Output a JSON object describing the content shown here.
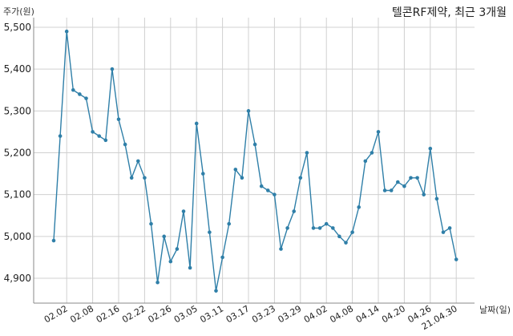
{
  "chart_data": {
    "type": "line",
    "title": "텔콘RF제약, 최근 3개월",
    "ylabel": "주가(원)",
    "xlabel": "날짜(일)",
    "ylim": [
      4850,
      5520
    ],
    "yticks": [
      4900,
      5000,
      5100,
      5200,
      5300,
      5400,
      5500
    ],
    "ytick_labels": [
      "4,900",
      "5,000",
      "5,100",
      "5,200",
      "5,300",
      "5,400",
      "5,500"
    ],
    "xtick_labels": [
      "02.02",
      "02.08",
      "02.16",
      "02.22",
      "02.26",
      "03.05",
      "03.11",
      "03.17",
      "03.23",
      "03.29",
      "04.02",
      "04.08",
      "04.14",
      "04.20",
      "04.26",
      "21.04.30"
    ],
    "xtick_index": [
      2,
      6,
      10,
      14,
      18,
      22,
      26,
      30,
      34,
      38,
      42,
      46,
      50,
      54,
      58,
      62
    ],
    "grid": true,
    "line_color": "#2f7fa8",
    "series": [
      {
        "values": [
          4990,
          5240,
          5490,
          5350,
          5340,
          5330,
          5250,
          5240,
          5230,
          5400,
          5280,
          5220,
          5140,
          5180,
          5140,
          5030,
          4890,
          5000,
          4940,
          4970,
          5060,
          4925,
          5270,
          5150,
          5010,
          4870,
          4950,
          5030,
          5160,
          5140,
          5300,
          5220,
          5120,
          5110,
          5100,
          4970,
          5020,
          5060,
          5140,
          5200,
          5020,
          5020,
          5030,
          5020,
          5000,
          4985,
          5010,
          5070,
          5180,
          5200,
          5250,
          5110,
          5110,
          5130,
          5120,
          5140,
          5140,
          5100,
          5210,
          5090,
          5010,
          5020,
          4945
        ]
      }
    ]
  }
}
